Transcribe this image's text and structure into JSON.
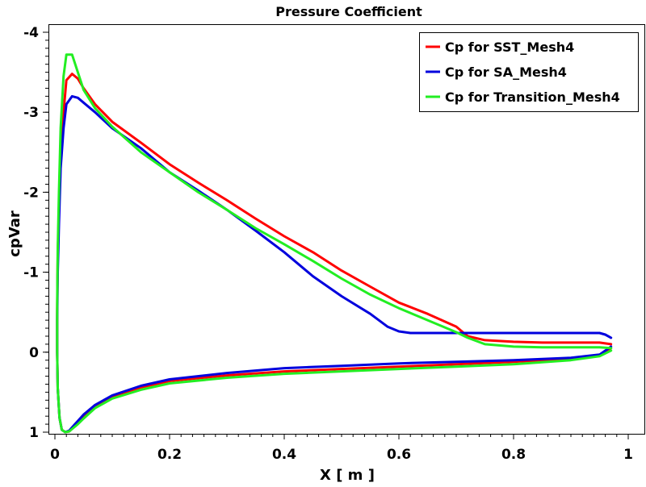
{
  "chart_data": {
    "type": "line",
    "title": "Pressure Coefficient",
    "xlabel": "X [ m ]",
    "ylabel": "cpVar",
    "xlim": [
      0,
      1
    ],
    "ylim": [
      -4,
      1
    ],
    "y_inverted": true,
    "grid": false,
    "legend_position": "top-right",
    "x_ticks": [
      0,
      0.2,
      0.4,
      0.6,
      0.8,
      1
    ],
    "x_tick_labels": [
      "0",
      "0.2",
      "0.4",
      "0.6",
      "0.8",
      "1"
    ],
    "y_ticks": [
      -4,
      -3,
      -2,
      -1,
      0,
      1
    ],
    "y_tick_labels": [
      "-4",
      "-3",
      "-2",
      "-1",
      "0",
      "1"
    ],
    "series": [
      {
        "name": "Cp for SST_Mesh4",
        "color": "#ff0000",
        "x": [
          0.97,
          0.95,
          0.9,
          0.85,
          0.8,
          0.75,
          0.72,
          0.7,
          0.65,
          0.6,
          0.55,
          0.5,
          0.45,
          0.4,
          0.35,
          0.3,
          0.25,
          0.2,
          0.15,
          0.1,
          0.07,
          0.05,
          0.04,
          0.03,
          0.02,
          0.015,
          0.01,
          0.007,
          0.005,
          0.004,
          0.004,
          0.005,
          0.008,
          0.012,
          0.018,
          0.025,
          0.03,
          0.04,
          0.05,
          0.07,
          0.1,
          0.15,
          0.2,
          0.3,
          0.4,
          0.5,
          0.6,
          0.7,
          0.8,
          0.9,
          0.95,
          0.97
        ],
        "y": [
          -0.1,
          -0.12,
          -0.12,
          -0.12,
          -0.13,
          -0.15,
          -0.2,
          -0.32,
          -0.48,
          -0.62,
          -0.82,
          -1.02,
          -1.25,
          -1.45,
          -1.67,
          -1.9,
          -2.12,
          -2.35,
          -2.62,
          -2.88,
          -3.1,
          -3.3,
          -3.42,
          -3.48,
          -3.4,
          -3.0,
          -2.5,
          -1.8,
          -1.2,
          -0.5,
          0.0,
          0.45,
          0.82,
          0.97,
          1.0,
          0.99,
          0.95,
          0.88,
          0.8,
          0.68,
          0.55,
          0.44,
          0.36,
          0.29,
          0.24,
          0.21,
          0.18,
          0.15,
          0.12,
          0.08,
          0.04,
          -0.05
        ]
      },
      {
        "name": "Cp for SA_Mesh4",
        "color": "#0000dd",
        "x": [
          0.97,
          0.96,
          0.95,
          0.9,
          0.85,
          0.8,
          0.75,
          0.7,
          0.65,
          0.62,
          0.6,
          0.58,
          0.55,
          0.5,
          0.45,
          0.4,
          0.35,
          0.3,
          0.25,
          0.2,
          0.15,
          0.1,
          0.07,
          0.05,
          0.04,
          0.03,
          0.02,
          0.015,
          0.01,
          0.007,
          0.005,
          0.004,
          0.004,
          0.005,
          0.008,
          0.012,
          0.018,
          0.025,
          0.03,
          0.04,
          0.05,
          0.07,
          0.1,
          0.15,
          0.2,
          0.3,
          0.4,
          0.5,
          0.6,
          0.7,
          0.8,
          0.9,
          0.95,
          0.97
        ],
        "y": [
          -0.18,
          -0.22,
          -0.24,
          -0.24,
          -0.24,
          -0.24,
          -0.24,
          -0.24,
          -0.24,
          -0.24,
          -0.26,
          -0.32,
          -0.48,
          -0.7,
          -0.95,
          -1.25,
          -1.52,
          -1.78,
          -2.02,
          -2.25,
          -2.55,
          -2.8,
          -3.0,
          -3.12,
          -3.18,
          -3.2,
          -3.1,
          -2.8,
          -2.3,
          -1.6,
          -1.0,
          -0.4,
          0.0,
          0.45,
          0.82,
          0.97,
          1.0,
          0.98,
          0.94,
          0.86,
          0.78,
          0.66,
          0.54,
          0.42,
          0.34,
          0.26,
          0.2,
          0.17,
          0.14,
          0.12,
          0.1,
          0.07,
          0.03,
          -0.07
        ]
      },
      {
        "name": "Cp for Transition_Mesh4",
        "color": "#22ee22",
        "x": [
          0.97,
          0.95,
          0.9,
          0.85,
          0.8,
          0.75,
          0.72,
          0.7,
          0.65,
          0.6,
          0.55,
          0.5,
          0.45,
          0.4,
          0.35,
          0.3,
          0.25,
          0.2,
          0.15,
          0.1,
          0.07,
          0.05,
          0.04,
          0.03,
          0.02,
          0.015,
          0.01,
          0.007,
          0.005,
          0.004,
          0.004,
          0.005,
          0.008,
          0.012,
          0.018,
          0.025,
          0.03,
          0.04,
          0.05,
          0.07,
          0.1,
          0.15,
          0.2,
          0.3,
          0.4,
          0.5,
          0.6,
          0.7,
          0.8,
          0.9,
          0.95,
          0.97
        ],
        "y": [
          -0.05,
          -0.06,
          -0.06,
          -0.06,
          -0.07,
          -0.1,
          -0.18,
          -0.25,
          -0.4,
          -0.55,
          -0.72,
          -0.92,
          -1.14,
          -1.35,
          -1.55,
          -1.78,
          -2.0,
          -2.25,
          -2.5,
          -2.82,
          -3.05,
          -3.28,
          -3.5,
          -3.72,
          -3.72,
          -3.45,
          -2.8,
          -2.0,
          -1.3,
          -0.6,
          0.0,
          0.45,
          0.82,
          0.97,
          1.0,
          0.99,
          0.96,
          0.9,
          0.83,
          0.7,
          0.58,
          0.47,
          0.39,
          0.32,
          0.27,
          0.24,
          0.21,
          0.18,
          0.15,
          0.1,
          0.05,
          -0.02
        ]
      }
    ]
  }
}
